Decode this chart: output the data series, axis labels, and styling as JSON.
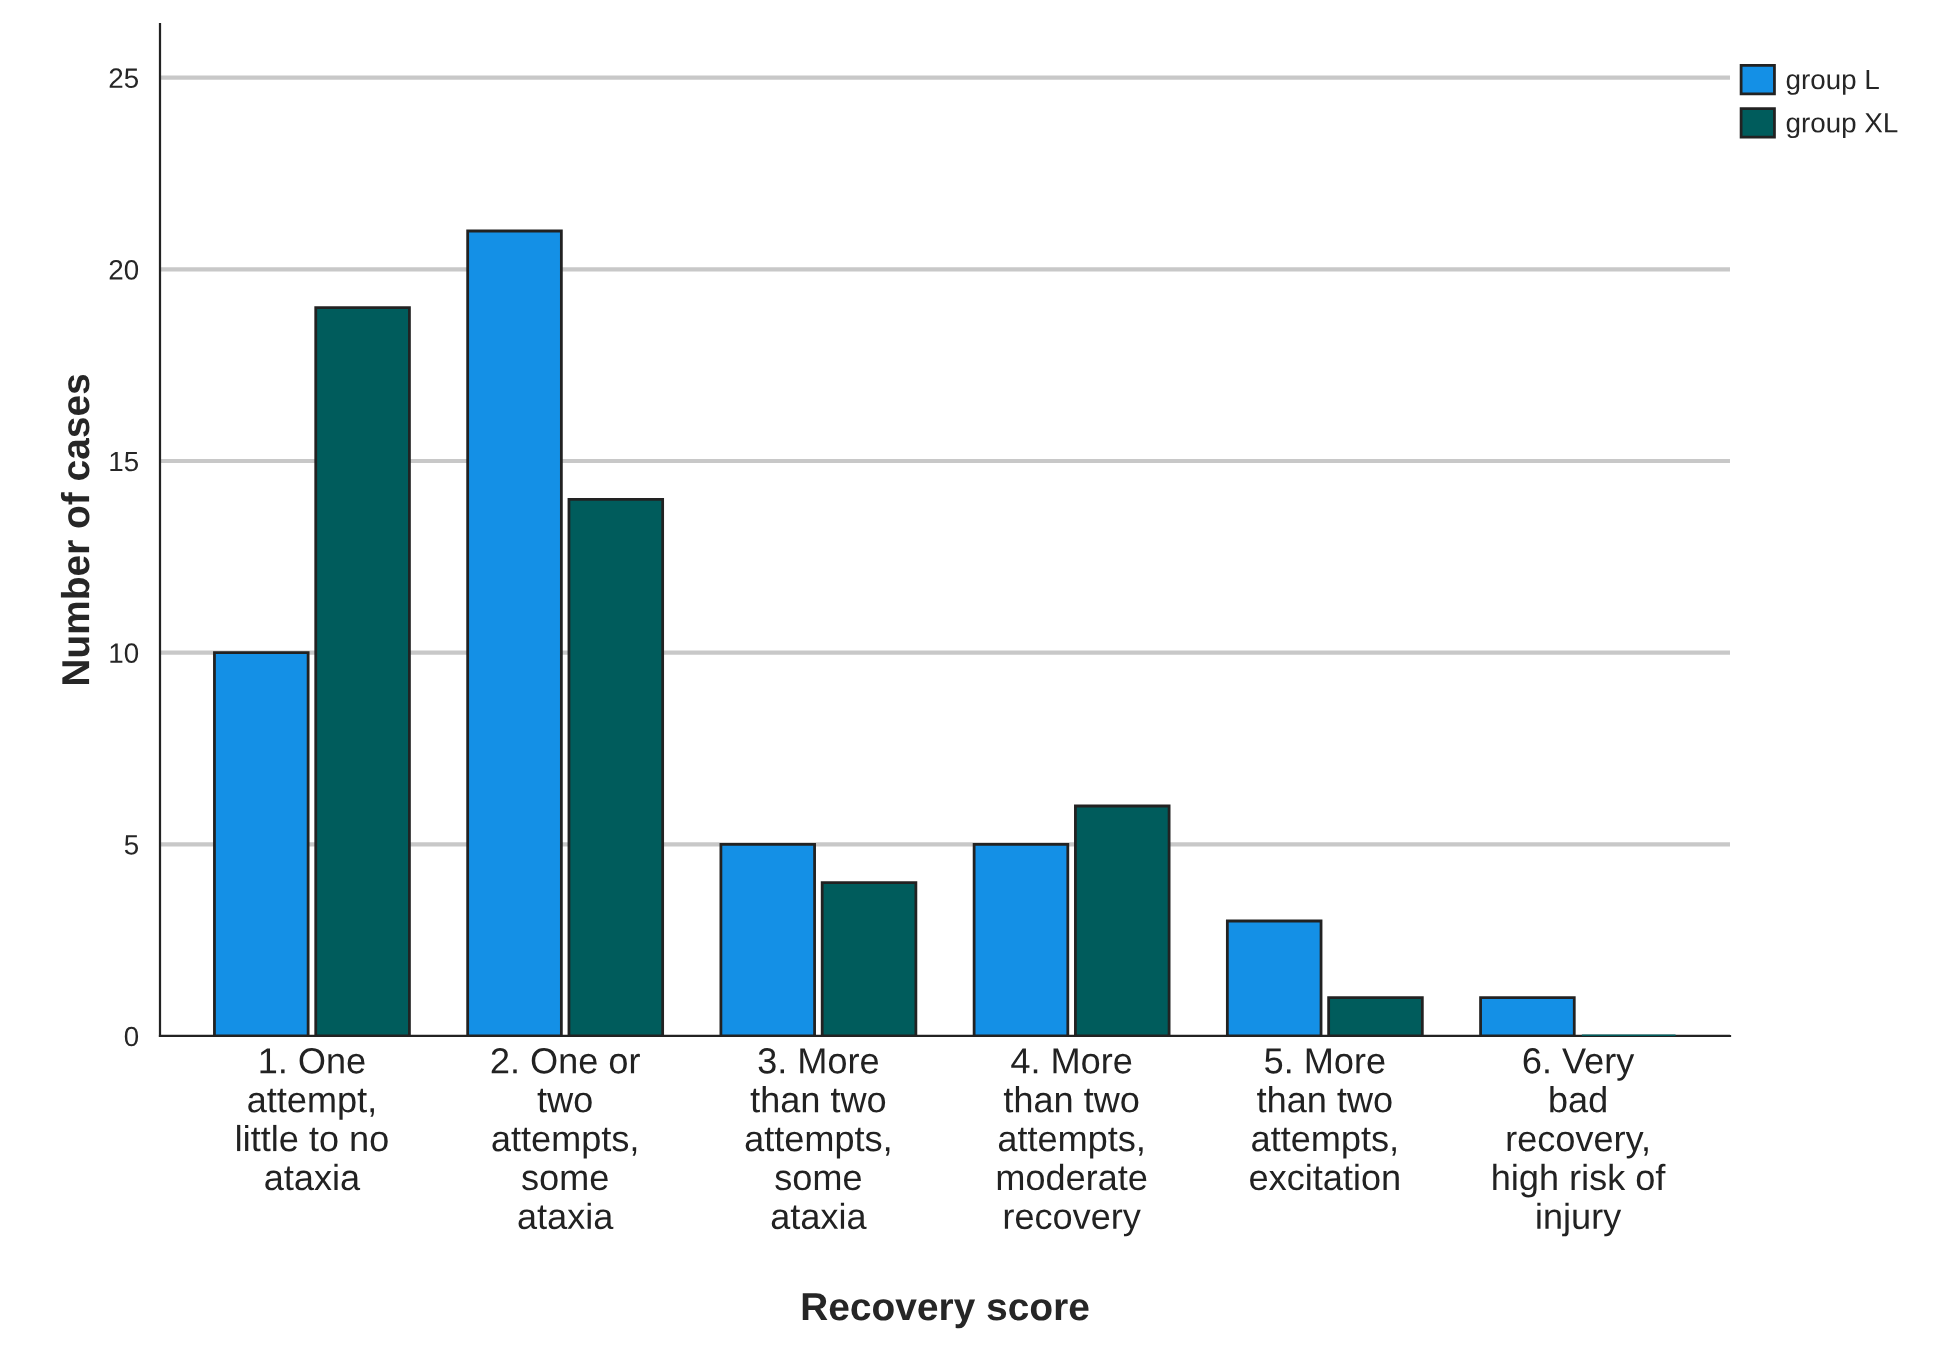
{
  "chart_data": {
    "type": "bar",
    "xlabel": "Recovery score",
    "ylabel": "Number of cases",
    "categories": [
      "1. One\nattempt,\nlittle to no\nataxia",
      "2. One or\ntwo\nattempts,\nsome\nataxia",
      "3. More\nthan two\nattempts,\nsome\nataxia",
      "4. More\nthan two\nattempts,\nmoderate\nrecovery",
      "5. More\nthan two\nattempts,\nexcitation",
      "6. Very\nbad\nrecovery,\nhigh risk of\ninjury"
    ],
    "series": [
      {
        "name": "group L",
        "color": "#1490e6",
        "values": [
          10,
          21,
          5,
          5,
          3,
          1
        ]
      },
      {
        "name": "group XL",
        "color": "#005c5c",
        "values": [
          19,
          14,
          4,
          6,
          1,
          0
        ]
      }
    ],
    "ylim": [
      0,
      26.4
    ],
    "yticks": [
      0,
      5,
      10,
      15,
      20,
      25
    ],
    "grid": "y",
    "legend": "top right"
  }
}
